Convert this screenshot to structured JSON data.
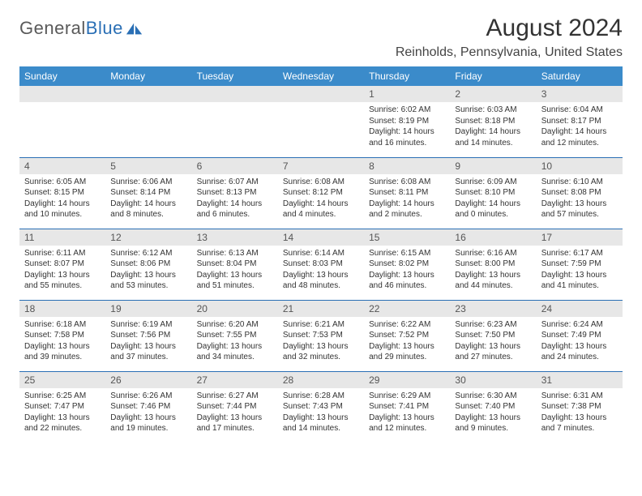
{
  "logo": {
    "word1": "General",
    "word2": "Blue"
  },
  "title": "August 2024",
  "location": "Reinholds, Pennsylvania, United States",
  "header_bg": "#3b8bca",
  "header_fg": "#ffffff",
  "rule_color": "#2a6fb5",
  "daynum_bg": "#e7e7e7",
  "page_bg": "#ffffff",
  "text_color": "#333333",
  "title_fontsize": 30,
  "location_fontsize": 16,
  "header_fontsize": 12,
  "daynum_fontsize": 12,
  "body_fontsize": 10,
  "weekdays": [
    "Sunday",
    "Monday",
    "Tuesday",
    "Wednesday",
    "Thursday",
    "Friday",
    "Saturday"
  ],
  "weeks": [
    [
      {
        "n": "",
        "sr": "",
        "ss": "",
        "dl": ""
      },
      {
        "n": "",
        "sr": "",
        "ss": "",
        "dl": ""
      },
      {
        "n": "",
        "sr": "",
        "ss": "",
        "dl": ""
      },
      {
        "n": "",
        "sr": "",
        "ss": "",
        "dl": ""
      },
      {
        "n": "1",
        "sr": "Sunrise: 6:02 AM",
        "ss": "Sunset: 8:19 PM",
        "dl": "Daylight: 14 hours and 16 minutes."
      },
      {
        "n": "2",
        "sr": "Sunrise: 6:03 AM",
        "ss": "Sunset: 8:18 PM",
        "dl": "Daylight: 14 hours and 14 minutes."
      },
      {
        "n": "3",
        "sr": "Sunrise: 6:04 AM",
        "ss": "Sunset: 8:17 PM",
        "dl": "Daylight: 14 hours and 12 minutes."
      }
    ],
    [
      {
        "n": "4",
        "sr": "Sunrise: 6:05 AM",
        "ss": "Sunset: 8:15 PM",
        "dl": "Daylight: 14 hours and 10 minutes."
      },
      {
        "n": "5",
        "sr": "Sunrise: 6:06 AM",
        "ss": "Sunset: 8:14 PM",
        "dl": "Daylight: 14 hours and 8 minutes."
      },
      {
        "n": "6",
        "sr": "Sunrise: 6:07 AM",
        "ss": "Sunset: 8:13 PM",
        "dl": "Daylight: 14 hours and 6 minutes."
      },
      {
        "n": "7",
        "sr": "Sunrise: 6:08 AM",
        "ss": "Sunset: 8:12 PM",
        "dl": "Daylight: 14 hours and 4 minutes."
      },
      {
        "n": "8",
        "sr": "Sunrise: 6:08 AM",
        "ss": "Sunset: 8:11 PM",
        "dl": "Daylight: 14 hours and 2 minutes."
      },
      {
        "n": "9",
        "sr": "Sunrise: 6:09 AM",
        "ss": "Sunset: 8:10 PM",
        "dl": "Daylight: 14 hours and 0 minutes."
      },
      {
        "n": "10",
        "sr": "Sunrise: 6:10 AM",
        "ss": "Sunset: 8:08 PM",
        "dl": "Daylight: 13 hours and 57 minutes."
      }
    ],
    [
      {
        "n": "11",
        "sr": "Sunrise: 6:11 AM",
        "ss": "Sunset: 8:07 PM",
        "dl": "Daylight: 13 hours and 55 minutes."
      },
      {
        "n": "12",
        "sr": "Sunrise: 6:12 AM",
        "ss": "Sunset: 8:06 PM",
        "dl": "Daylight: 13 hours and 53 minutes."
      },
      {
        "n": "13",
        "sr": "Sunrise: 6:13 AM",
        "ss": "Sunset: 8:04 PM",
        "dl": "Daylight: 13 hours and 51 minutes."
      },
      {
        "n": "14",
        "sr": "Sunrise: 6:14 AM",
        "ss": "Sunset: 8:03 PM",
        "dl": "Daylight: 13 hours and 48 minutes."
      },
      {
        "n": "15",
        "sr": "Sunrise: 6:15 AM",
        "ss": "Sunset: 8:02 PM",
        "dl": "Daylight: 13 hours and 46 minutes."
      },
      {
        "n": "16",
        "sr": "Sunrise: 6:16 AM",
        "ss": "Sunset: 8:00 PM",
        "dl": "Daylight: 13 hours and 44 minutes."
      },
      {
        "n": "17",
        "sr": "Sunrise: 6:17 AM",
        "ss": "Sunset: 7:59 PM",
        "dl": "Daylight: 13 hours and 41 minutes."
      }
    ],
    [
      {
        "n": "18",
        "sr": "Sunrise: 6:18 AM",
        "ss": "Sunset: 7:58 PM",
        "dl": "Daylight: 13 hours and 39 minutes."
      },
      {
        "n": "19",
        "sr": "Sunrise: 6:19 AM",
        "ss": "Sunset: 7:56 PM",
        "dl": "Daylight: 13 hours and 37 minutes."
      },
      {
        "n": "20",
        "sr": "Sunrise: 6:20 AM",
        "ss": "Sunset: 7:55 PM",
        "dl": "Daylight: 13 hours and 34 minutes."
      },
      {
        "n": "21",
        "sr": "Sunrise: 6:21 AM",
        "ss": "Sunset: 7:53 PM",
        "dl": "Daylight: 13 hours and 32 minutes."
      },
      {
        "n": "22",
        "sr": "Sunrise: 6:22 AM",
        "ss": "Sunset: 7:52 PM",
        "dl": "Daylight: 13 hours and 29 minutes."
      },
      {
        "n": "23",
        "sr": "Sunrise: 6:23 AM",
        "ss": "Sunset: 7:50 PM",
        "dl": "Daylight: 13 hours and 27 minutes."
      },
      {
        "n": "24",
        "sr": "Sunrise: 6:24 AM",
        "ss": "Sunset: 7:49 PM",
        "dl": "Daylight: 13 hours and 24 minutes."
      }
    ],
    [
      {
        "n": "25",
        "sr": "Sunrise: 6:25 AM",
        "ss": "Sunset: 7:47 PM",
        "dl": "Daylight: 13 hours and 22 minutes."
      },
      {
        "n": "26",
        "sr": "Sunrise: 6:26 AM",
        "ss": "Sunset: 7:46 PM",
        "dl": "Daylight: 13 hours and 19 minutes."
      },
      {
        "n": "27",
        "sr": "Sunrise: 6:27 AM",
        "ss": "Sunset: 7:44 PM",
        "dl": "Daylight: 13 hours and 17 minutes."
      },
      {
        "n": "28",
        "sr": "Sunrise: 6:28 AM",
        "ss": "Sunset: 7:43 PM",
        "dl": "Daylight: 13 hours and 14 minutes."
      },
      {
        "n": "29",
        "sr": "Sunrise: 6:29 AM",
        "ss": "Sunset: 7:41 PM",
        "dl": "Daylight: 13 hours and 12 minutes."
      },
      {
        "n": "30",
        "sr": "Sunrise: 6:30 AM",
        "ss": "Sunset: 7:40 PM",
        "dl": "Daylight: 13 hours and 9 minutes."
      },
      {
        "n": "31",
        "sr": "Sunrise: 6:31 AM",
        "ss": "Sunset: 7:38 PM",
        "dl": "Daylight: 13 hours and 7 minutes."
      }
    ]
  ]
}
